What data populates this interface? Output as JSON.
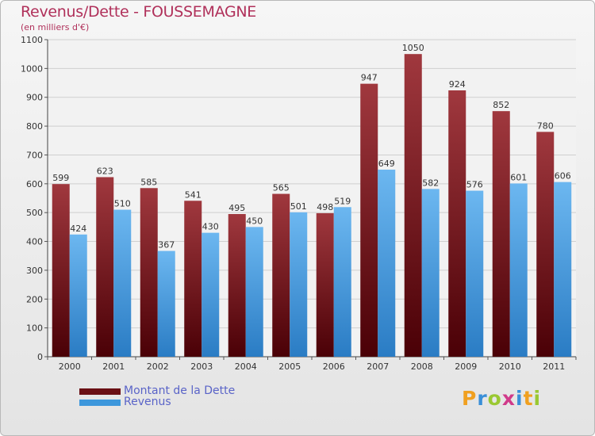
{
  "title": "Revenus/Dette - FOUSSEMAGNE",
  "subtitle": "(en milliers d'€)",
  "logo": [
    "P",
    "r",
    "o",
    "x",
    "i",
    "t",
    "i"
  ],
  "legend": [
    {
      "label": "Montant de la Dette",
      "color": "#6a0f14"
    },
    {
      "label": "Revenus",
      "color": "#3d97dc"
    }
  ],
  "chart_data": {
    "type": "bar",
    "categories": [
      "2000",
      "2001",
      "2002",
      "2003",
      "2004",
      "2005",
      "2006",
      "2007",
      "2008",
      "2009",
      "2010",
      "2011"
    ],
    "series": [
      {
        "name": "Montant de la Dette",
        "values": [
          599,
          623,
          585,
          541,
          495,
          565,
          498,
          947,
          1050,
          924,
          852,
          780
        ]
      },
      {
        "name": "Revenus",
        "values": [
          424,
          510,
          367,
          430,
          450,
          501,
          519,
          649,
          582,
          576,
          601,
          606
        ]
      }
    ],
    "yticks": [
      0,
      100,
      200,
      300,
      400,
      500,
      600,
      700,
      800,
      900,
      1000,
      1100
    ],
    "ylim": [
      0,
      1100
    ],
    "grid": true
  }
}
